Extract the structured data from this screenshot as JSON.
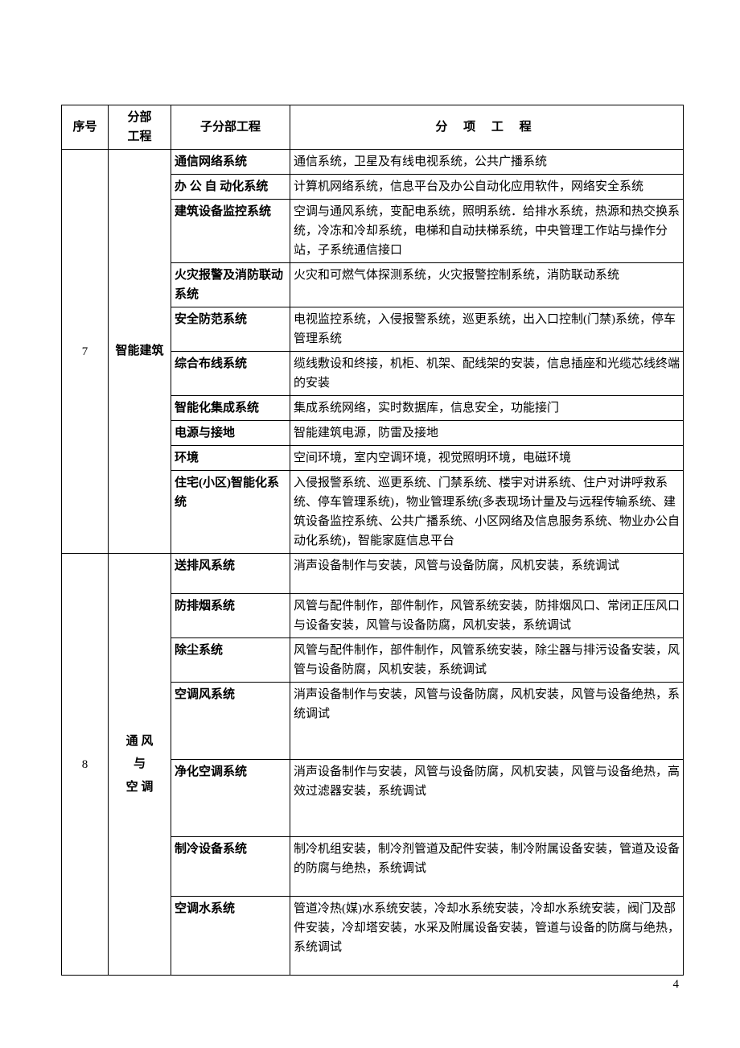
{
  "page_number": "4",
  "headers": {
    "seq": "序号",
    "division": "分部\n工程",
    "subdivision": "子分部工程",
    "item": "分 项 工 程"
  },
  "sections": [
    {
      "seq": "7",
      "division": "智能建筑",
      "rows": [
        {
          "sub": "通信网络系统",
          "item": "通信系统，卫星及有线电视系统，公共广播系统"
        },
        {
          "sub": "办 公 自 动化系统",
          "item": "计算机网络系统，信息平台及办公自动化应用软件，网络安全系统"
        },
        {
          "sub": "建筑设备监控系统",
          "item": "空调与通风系统，变配电系统，照明系统．给排水系统，热源和热交换系统，冷冻和冷却系统，电梯和自动扶梯系统，中央管理工作站与操作分站，子系统通信接口"
        },
        {
          "sub": "火灾报警及消防联动系统",
          "item": "火灾和可燃气体探测系统，火灾报警控制系统，消防联动系统"
        },
        {
          "sub": "安全防范系统",
          "item": "电视监控系统，入侵报警系统，巡更系统，出入口控制(门禁)系统，停车管理系统"
        },
        {
          "sub": "综合布线系统",
          "item": "缆线敷设和终接，机柜、机架、配线架的安装，信息插座和光缆芯线终端的安装"
        },
        {
          "sub": "智能化集成系统",
          "item": "集成系统网络，实时数据库，信息安全，功能接门"
        },
        {
          "sub": "电源与接地",
          "item": "智能建筑电源，防雷及接地"
        },
        {
          "sub": "环境",
          "item": "空间环境，室内空调环境，视觉照明环境，电磁环境"
        },
        {
          "sub": "住宅(小区)智能化系统",
          "item": "入侵报警系统、巡更系统、门禁系统、楼宇对讲系统、住户对讲呼救系统、停车管理系统)，物业管理系统(多表现场计量及与远程传输系统、建筑设备监控系统、公共广播系统、小区网络及信息服务系统、物业办公自动化系统)，智能家庭信息平台"
        }
      ]
    },
    {
      "seq": "8",
      "division": "通 风\n与\n空 调",
      "rows": [
        {
          "sub": "送排风系统",
          "item": "消声设备制作与安装，风管与设备防腐，风机安装，系统调试",
          "pad": true
        },
        {
          "sub": "防排烟系统",
          "item": "风管与配件制作，部件制作，风管系统安装，防排烟风口、常闭正压风口与设备安装，风管与设备防腐，风机安装，系统调试"
        },
        {
          "sub": "除尘系统",
          "item": "风管与配件制作，部件制作，风管系统安装，除尘器与排污设备安装，风管与设备防腐，风机安装，系统调试"
        },
        {
          "sub": "空调风系统",
          "item": "消声设备制作与安装，风管与设备防腐，风机安装，风管与设备绝热，系统调试",
          "pad2": true
        },
        {
          "sub": "净化空调系统",
          "item": "消声设备制作与安装，风管与设备防腐，风机安装，风管与设备绝热，高效过滤器安装，系统调试",
          "pad2": true
        },
        {
          "sub": "制冷设备系统",
          "item": "制冷机组安装，制冷剂管道及配件安装，制冷附属设备安装，管道及设备的防腐与绝热，系统调试",
          "pad": true
        },
        {
          "sub": "空调水系统",
          "item": "管道冷热(媒)水系统安装，冷却水系统安装，冷却水系统安装，阀门及部件安装，冷却塔安装，水采及附属设备安装，管道与设备的防腐与绝热，系统调试",
          "pad": true
        }
      ]
    }
  ]
}
